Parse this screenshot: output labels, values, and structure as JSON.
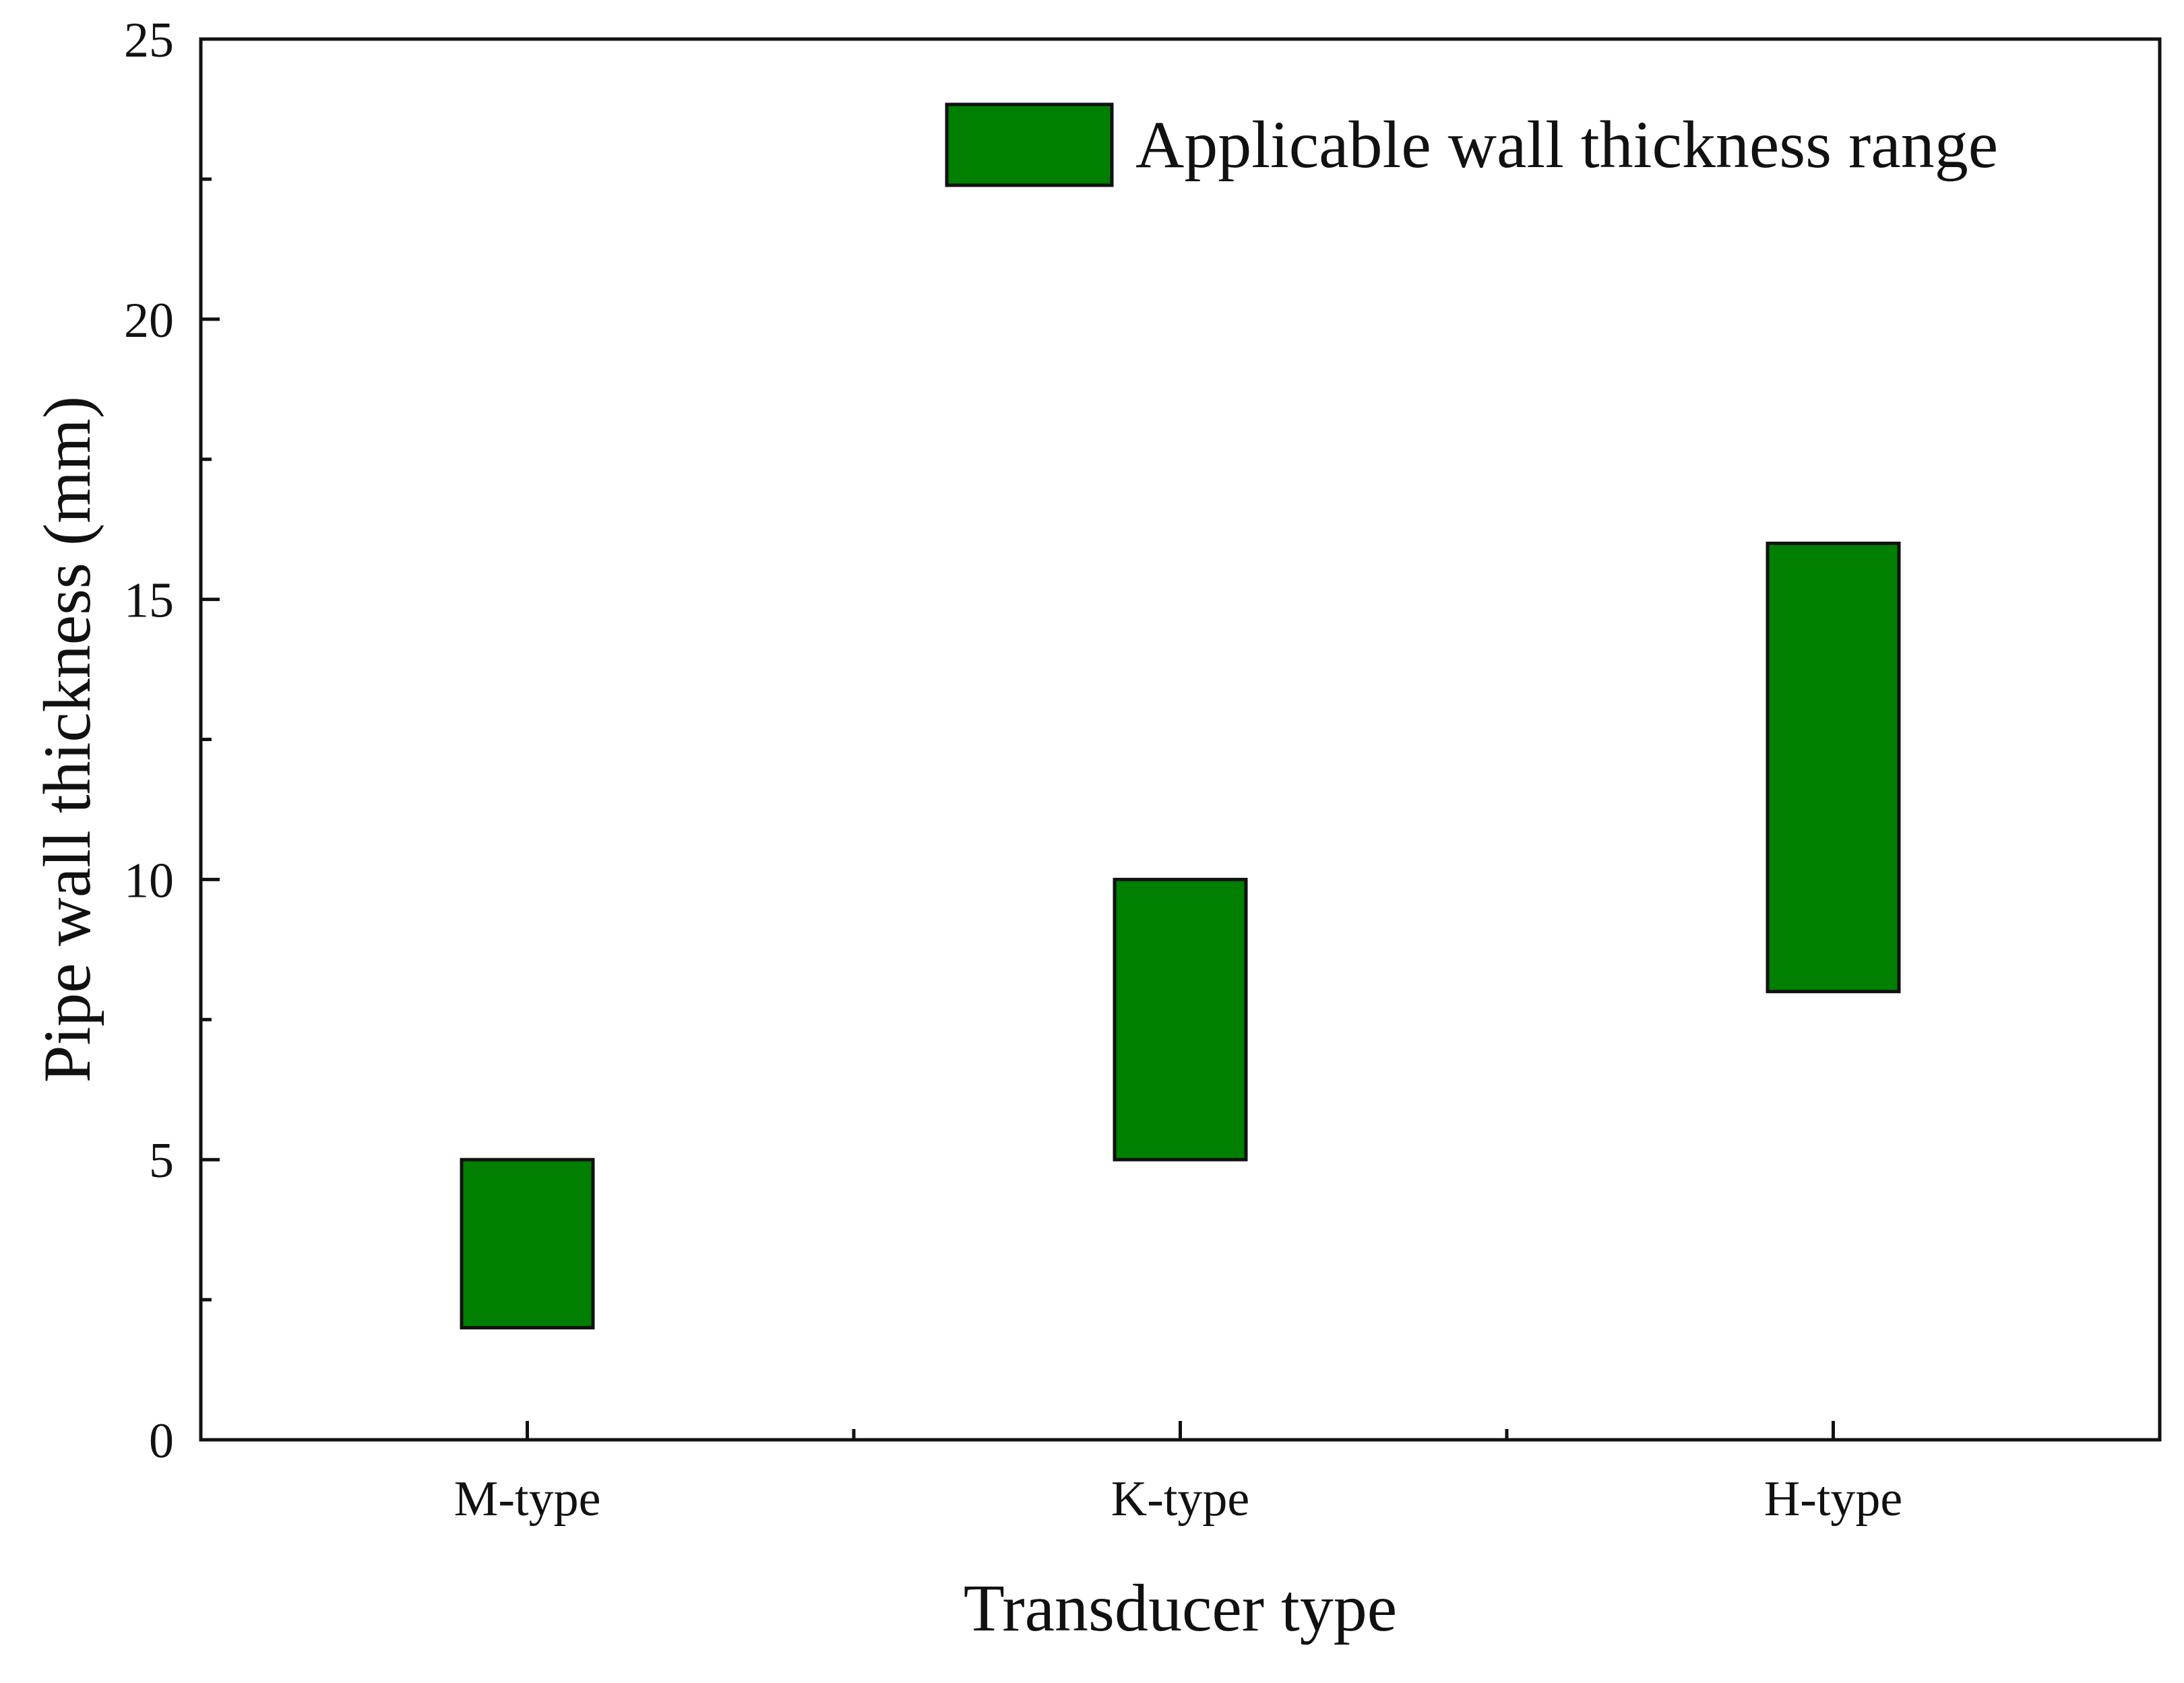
{
  "chart_data": {
    "type": "bar",
    "subtype": "floating-range",
    "categories": [
      "M-type",
      "K-type",
      "H-type"
    ],
    "series": [
      {
        "name": "Applicable wall thickness range",
        "color": "#007f00",
        "ranges": [
          [
            2,
            5
          ],
          [
            5,
            10
          ],
          [
            8,
            16
          ]
        ]
      }
    ],
    "xlabel": "Transducer type",
    "ylabel": "Pipe wall thickness (mm)",
    "ylim": [
      0,
      25
    ],
    "yticks": [
      0,
      5,
      10,
      15,
      20,
      25
    ],
    "grid": false,
    "legend_position": "top-right"
  }
}
